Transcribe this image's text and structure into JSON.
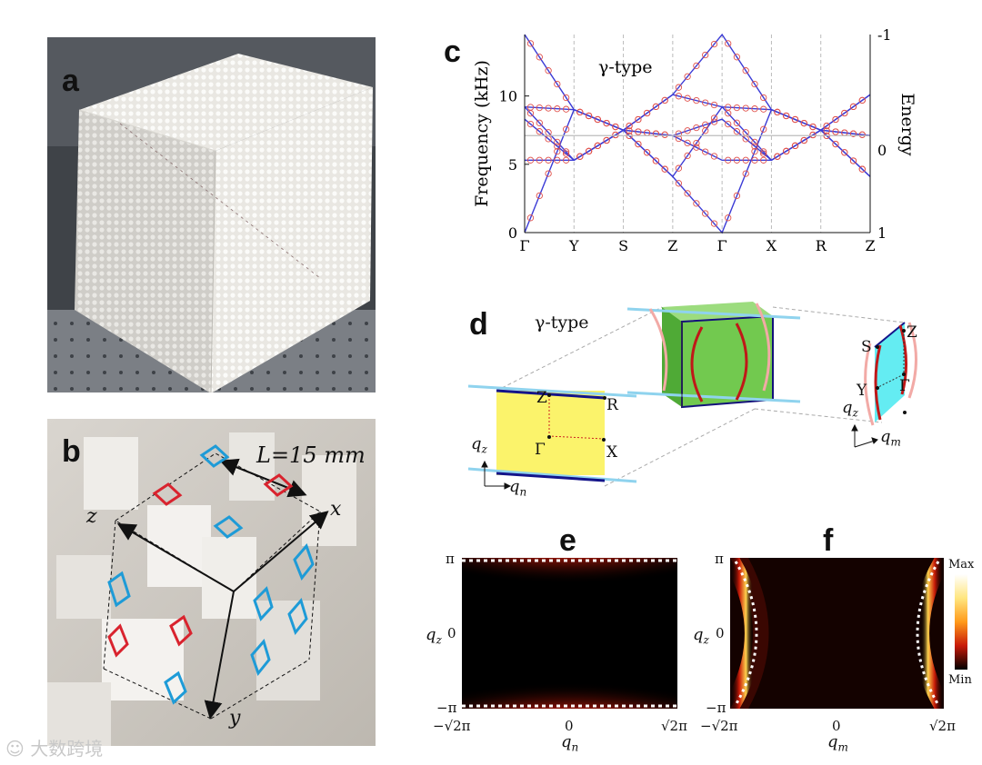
{
  "panels": {
    "a": "a",
    "b": "b",
    "c": "c",
    "d": "d",
    "e": "e",
    "f": "f"
  },
  "panel_b": {
    "length_label": "L=15 mm",
    "axis_x": "x",
    "axis_y": "y",
    "axis_z": "z"
  },
  "chart_data": {
    "type": "line",
    "title": "γ-type",
    "ylabel": "Frequency (kHz)",
    "y2label": "Energy",
    "x": [
      "Γ",
      "Y",
      "S",
      "Z",
      "Γ",
      "X",
      "R",
      "Z"
    ],
    "yticks": [
      0,
      5,
      10
    ],
    "y2ticks": [
      "-1",
      "0",
      "1"
    ],
    "ylim": [
      0,
      14.5
    ],
    "series": [
      {
        "values": [
          14.5,
          9.0,
          7.5,
          10.1,
          14.5,
          9.0,
          7.5,
          10.1
        ]
      },
      {
        "values": [
          0,
          9.0,
          7.5,
          4.1,
          0,
          9.0,
          7.5,
          4.1
        ]
      },
      {
        "values": [
          9.2,
          9.0,
          7.5,
          10.1,
          9.2,
          9.0,
          7.5,
          10.1
        ]
      },
      {
        "values": [
          9.2,
          5.3,
          7.5,
          4.1,
          9.2,
          5.3,
          7.5,
          4.1
        ]
      },
      {
        "values": [
          8.3,
          5.3,
          7.5,
          7.1,
          8.3,
          5.3,
          7.5,
          7.1
        ]
      },
      {
        "values": [
          5.3,
          5.3,
          7.5,
          7.1,
          5.3,
          5.3,
          7.5,
          7.1
        ]
      },
      {
        "values": [
          7.1,
          7.1,
          7.1,
          7.1,
          7.1,
          7.1,
          7.1,
          7.1
        ]
      }
    ]
  },
  "panel_d": {
    "title": "γ-type",
    "left_points": [
      "Z",
      "R",
      "Γ",
      "X"
    ],
    "right_points": [
      "Z",
      "S",
      "Γ",
      "Y"
    ],
    "axis_qz": "q",
    "axis_qz_sub": "z",
    "axis_qn_sub": "n",
    "axis_qm_sub": "m"
  },
  "panel_e": {
    "y_top": "π",
    "y_mid": "0",
    "y_bot": "−π",
    "x_left": "−√2π",
    "x_mid": "0",
    "x_right": "√2π",
    "xlabel": "q",
    "xlabel_sub": "n",
    "ylabel": "q",
    "ylabel_sub": "z"
  },
  "panel_f": {
    "y_top": "π",
    "y_mid": "0",
    "y_bot": "−π",
    "x_left": "−√2π",
    "x_mid": "0",
    "x_right": "√2π",
    "xlabel": "q",
    "xlabel_sub": "m",
    "ylabel": "q",
    "ylabel_sub": "z"
  },
  "colorbar": {
    "max": "Max",
    "min": "Min"
  },
  "watermark": "大数跨境"
}
